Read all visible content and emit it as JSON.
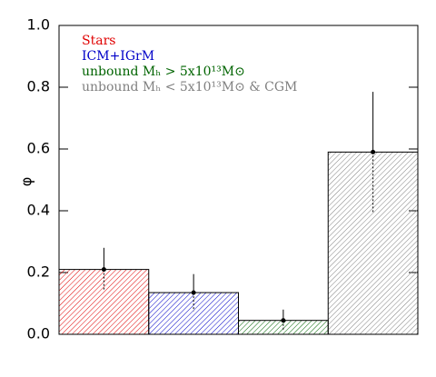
{
  "chart_data": {
    "type": "bar",
    "ylabel": "φ",
    "ylim": [
      0,
      1
    ],
    "yticks": [
      {
        "value": 0,
        "label": "0.0"
      },
      {
        "value": 0.2,
        "label": "0.2"
      },
      {
        "value": 0.4,
        "label": "0.4"
      },
      {
        "value": 0.6,
        "label": "0.6"
      },
      {
        "value": 0.8,
        "label": "0.8"
      },
      {
        "value": 1,
        "label": "1.0"
      }
    ],
    "series": [
      {
        "name": "Stars",
        "color": "#e00000",
        "values": [
          0.21
        ],
        "errors": [
          0.07
        ]
      },
      {
        "name": "ICM+IGrM",
        "color": "#0000c8",
        "values": [
          0.135
        ],
        "errors": [
          0.06
        ]
      },
      {
        "name": "unbound Mₕ > 5x10¹³M⊙",
        "color": "#006400",
        "values": [
          0.045
        ],
        "errors": [
          0.035
        ]
      },
      {
        "name": "unbound Mₕ < 5x10¹³M⊙ & CGM",
        "color": "#808080",
        "values": [
          0.59
        ],
        "errors": [
          0.195
        ]
      }
    ]
  }
}
